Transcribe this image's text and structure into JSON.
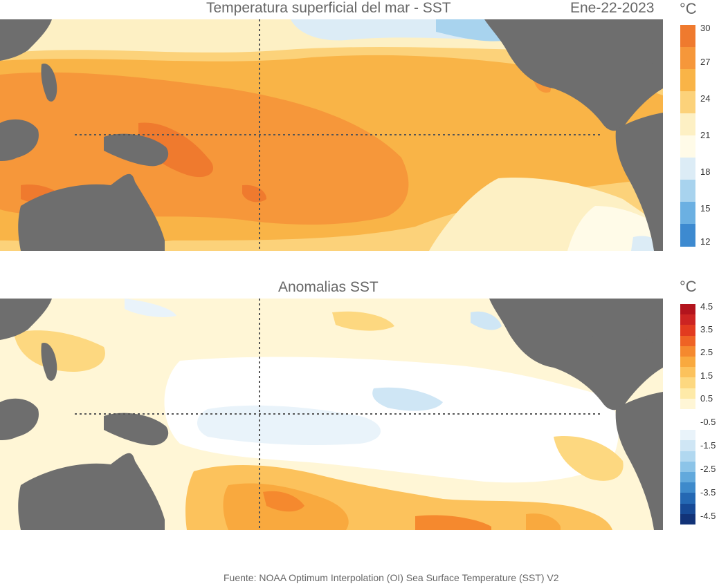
{
  "top_panel": {
    "title": "Temperatura superficial del mar - SST",
    "date": "Ene-22-2023",
    "unit": "°C",
    "colorbar": {
      "labels": [
        "30",
        "27",
        "24",
        "21",
        "18",
        "15",
        "12"
      ],
      "colors": [
        "#ef7a2e",
        "#f6973a",
        "#f9b447",
        "#fcd27a",
        "#fdf0c4",
        "#fffbe8",
        "#dcecf6",
        "#a8d3ee",
        "#6bb0e2",
        "#3d8ad0"
      ]
    }
  },
  "bottom_panel": {
    "title": "Anomalias SST",
    "unit": "°C",
    "colorbar": {
      "labels": [
        "4.5",
        "3.5",
        "2.5",
        "1.5",
        "0.5",
        "-0.5",
        "-1.5",
        "-2.5",
        "-3.5",
        "-4.5"
      ],
      "colors": [
        "#b3141d",
        "#cc2422",
        "#e23b1f",
        "#ef6324",
        "#f5892e",
        "#f9a93e",
        "#fcc25c",
        "#fdd880",
        "#feeaa8",
        "#fff6d6",
        "#ffffff",
        "#ffffff",
        "#e9f3fa",
        "#cfe6f5",
        "#b1d8f0",
        "#8cc4e8",
        "#62a9dc",
        "#3e8acb",
        "#2468b3",
        "#174a96",
        "#123378"
      ]
    }
  },
  "source": "Fuente: NOAA Optimum Interpolation (OI) Sea Surface Temperature (SST) V2",
  "colors": {
    "land": "#6e6e6e",
    "gridline": "#555555"
  }
}
